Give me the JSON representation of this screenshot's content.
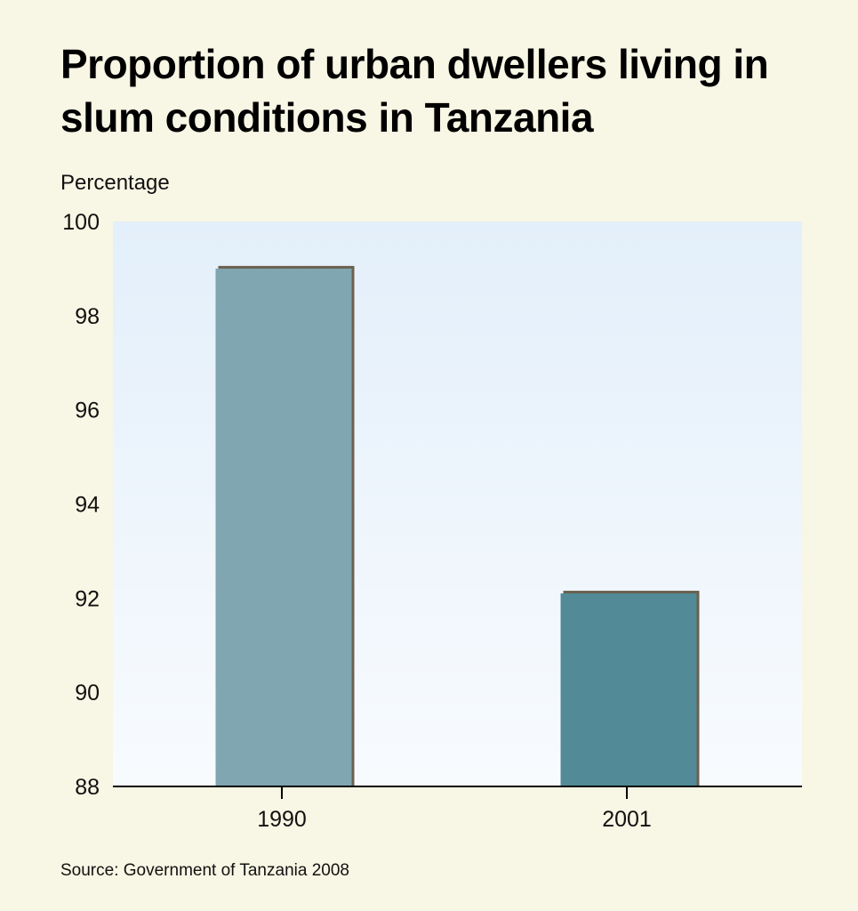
{
  "chart_data": {
    "type": "bar",
    "title": "Proportion of urban dwellers living in slum conditions in Tanzania",
    "ylabel": "Percentage",
    "xlabel": "",
    "categories": [
      "1990",
      "2001"
    ],
    "values": [
      99.0,
      92.1
    ],
    "ylim": [
      88,
      100
    ],
    "yticks": [
      "88",
      "90",
      "92",
      "94",
      "96",
      "98",
      "100"
    ],
    "grid": false,
    "colors": [
      "#80a6b1",
      "#528b97"
    ],
    "shadow_color": "#6b6150",
    "source": "Source: Government of Tanzania 2008"
  }
}
